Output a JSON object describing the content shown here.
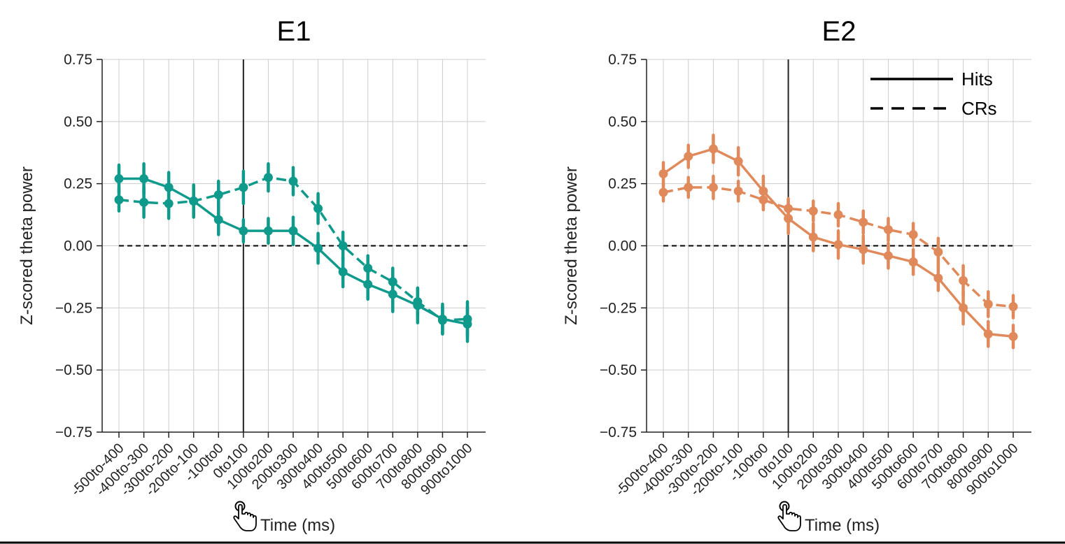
{
  "colors": {
    "e1": "#0f9a8c",
    "e2": "#e08a5c",
    "grid": "#cccccc"
  },
  "icons": [
    "pointer-hand-icon",
    "pointer-hand-icon"
  ],
  "chart_data": [
    {
      "type": "line",
      "title": "E1",
      "xlabel": "Time (ms)",
      "ylabel": "Z-scored theta power",
      "categories": [
        "-500to-400",
        "-400to-300",
        "-300to-200",
        "-200to-100",
        "-100to0",
        "0to100",
        "100to200",
        "200to300",
        "300to400",
        "400to500",
        "500to600",
        "600to700",
        "700to800",
        "800to900",
        "900to1000"
      ],
      "ylim": [
        -0.75,
        0.75
      ],
      "yticks": [
        "0.75",
        "0.50",
        "0.25",
        "0.00",
        "−0.25",
        "−0.50",
        "−0.75"
      ],
      "ytick_values": [
        0.75,
        0.5,
        0.25,
        0,
        -0.25,
        -0.5,
        -0.75
      ],
      "reference_line": 0,
      "event_category": "0to100",
      "grid": true,
      "series": [
        {
          "key": "hits",
          "style": "solid",
          "values": [
            0.27,
            0.27,
            0.235,
            0.18,
            0.105,
            0.06,
            0.06,
            0.06,
            -0.01,
            -0.105,
            -0.155,
            -0.195,
            -0.24,
            -0.295,
            -0.315
          ],
          "err": [
            0.055,
            0.06,
            0.06,
            0.065,
            0.06,
            0.045,
            0.05,
            0.055,
            0.06,
            0.06,
            0.06,
            0.07,
            0.07,
            0.06,
            0.07
          ]
        },
        {
          "key": "crs",
          "style": "dashed",
          "values": [
            0.185,
            0.175,
            0.17,
            0.18,
            0.205,
            0.235,
            0.275,
            0.26,
            0.15,
            0.0,
            -0.09,
            -0.145,
            -0.225,
            -0.3,
            -0.295
          ],
          "err": [
            0.045,
            0.06,
            0.06,
            0.05,
            0.055,
            0.065,
            0.055,
            0.055,
            0.06,
            0.055,
            0.05,
            0.055,
            0.055,
            0.055,
            0.07
          ]
        }
      ],
      "legend": null
    },
    {
      "type": "line",
      "title": "E2",
      "xlabel": "Time (ms)",
      "ylabel": "Z-scored theta power",
      "categories": [
        "-500to-400",
        "-400to-300",
        "-300to-200",
        "-200to-100",
        "-100to0",
        "0to100",
        "100to200",
        "200to300",
        "300to400",
        "400to500",
        "500to600",
        "600to700",
        "700to800",
        "800to900",
        "900to1000"
      ],
      "ylim": [
        -0.75,
        0.75
      ],
      "yticks": [
        "0.75",
        "0.50",
        "0.25",
        "0.00",
        "−0.25",
        "−0.50",
        "−0.75"
      ],
      "ytick_values": [
        0.75,
        0.5,
        0.25,
        0,
        -0.25,
        -0.5,
        -0.75
      ],
      "reference_line": 0,
      "event_category": "0to100",
      "grid": true,
      "series": [
        {
          "key": "hits",
          "name": "Hits",
          "style": "solid",
          "values": [
            0.29,
            0.36,
            0.39,
            0.34,
            0.22,
            0.11,
            0.035,
            0.005,
            -0.015,
            -0.04,
            -0.065,
            -0.13,
            -0.25,
            -0.355,
            -0.365
          ],
          "err": [
            0.045,
            0.045,
            0.055,
            0.055,
            0.06,
            0.06,
            0.055,
            0.055,
            0.055,
            0.05,
            0.05,
            0.05,
            0.065,
            0.05,
            0.045
          ]
        },
        {
          "key": "crs",
          "name": "CRs",
          "style": "dashed",
          "values": [
            0.215,
            0.235,
            0.235,
            0.22,
            0.185,
            0.15,
            0.14,
            0.125,
            0.095,
            0.065,
            0.045,
            -0.025,
            -0.14,
            -0.235,
            -0.245
          ],
          "err": [
            0.035,
            0.04,
            0.045,
            0.04,
            0.04,
            0.04,
            0.04,
            0.045,
            0.045,
            0.045,
            0.045,
            0.055,
            0.06,
            0.05,
            0.045
          ]
        }
      ],
      "legend": {
        "position": "top-right",
        "entries": [
          "Hits",
          "CRs"
        ]
      }
    }
  ]
}
